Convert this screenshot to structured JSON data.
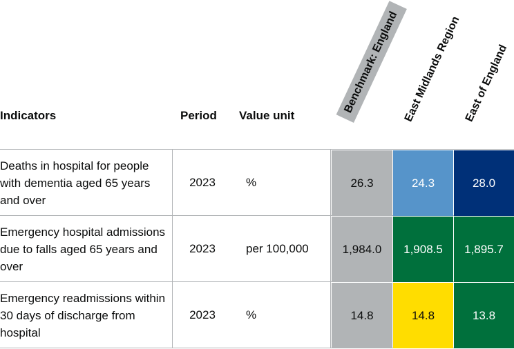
{
  "headers": {
    "indicators": "Indicators",
    "period": "Period",
    "value_unit": "Value unit",
    "areas": [
      "Benchmark: England",
      "East Midlands Region",
      "East of England"
    ]
  },
  "colors": {
    "benchmark": "#b1b4b6",
    "better": "#5694ca",
    "better_strong": "#003078",
    "worse": "#00703c",
    "similar": "#ffdd00",
    "border": "#b1b4b6"
  },
  "rows": [
    {
      "indicator": "Deaths in hospital for people with dementia aged 65 years and over",
      "period": "2023",
      "unit": "%",
      "benchmark": "26.3",
      "east_midlands": {
        "value": "24.3",
        "color": "#5694ca",
        "text_color": "#ffffff"
      },
      "east_of_england": {
        "value": "28.0",
        "color": "#003078",
        "text_color": "#ffffff"
      }
    },
    {
      "indicator": "Emergency hospital admissions due to falls aged 65 years and over",
      "period": "2023",
      "unit": "per 100,000",
      "benchmark": "1,984.0",
      "east_midlands": {
        "value": "1,908.5",
        "color": "#00703c",
        "text_color": "#ffffff"
      },
      "east_of_england": {
        "value": "1,895.7",
        "color": "#00703c",
        "text_color": "#ffffff"
      }
    },
    {
      "indicator": "Emergency readmissions within 30 days of discharge from hospital",
      "period": "2023",
      "unit": "%",
      "benchmark": "14.8",
      "east_midlands": {
        "value": "14.8",
        "color": "#ffdd00",
        "text_color": "#0b0c0c"
      },
      "east_of_england": {
        "value": "13.8",
        "color": "#00703c",
        "text_color": "#ffffff"
      }
    }
  ]
}
